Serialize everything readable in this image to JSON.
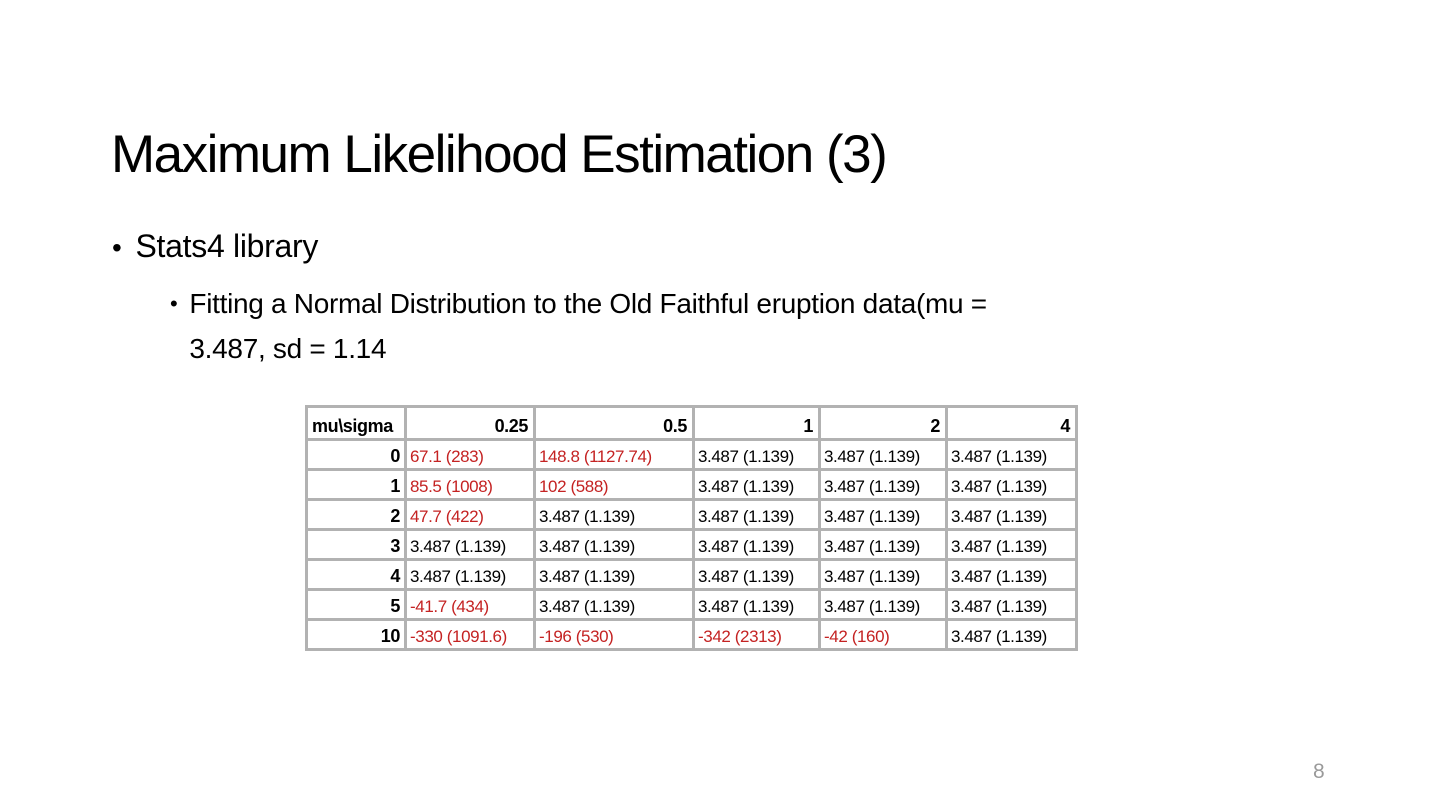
{
  "slide": {
    "title": "Maximum Likelihood Estimation (3)",
    "page_number": "8",
    "bullet_glyph": "•"
  },
  "bullets": {
    "level1": "Stats4 library",
    "level2": {
      "line1": "Fitting a Normal Distribution to the Old Faithful eruption data(mu =",
      "line2": "3.487, sd = 1.14"
    }
  },
  "table": {
    "corner_label": "mu\\sigma",
    "col_headers": [
      "0.25",
      "0.5",
      "1",
      "2",
      "4"
    ],
    "rows": [
      {
        "mu": "0",
        "cells": [
          {
            "text": "67.1 (283)",
            "highlight": true
          },
          {
            "text": "148.8 (1127.74)",
            "highlight": true
          },
          {
            "text": "3.487 (1.139)",
            "highlight": false
          },
          {
            "text": "3.487 (1.139)",
            "highlight": false
          },
          {
            "text": "3.487 (1.139)",
            "highlight": false
          }
        ]
      },
      {
        "mu": "1",
        "cells": [
          {
            "text": "85.5 (1008)",
            "highlight": true
          },
          {
            "text": "102 (588)",
            "highlight": true
          },
          {
            "text": "3.487 (1.139)",
            "highlight": false
          },
          {
            "text": "3.487 (1.139)",
            "highlight": false
          },
          {
            "text": "3.487 (1.139)",
            "highlight": false
          }
        ]
      },
      {
        "mu": "2",
        "cells": [
          {
            "text": "47.7 (422)",
            "highlight": true
          },
          {
            "text": "3.487 (1.139)",
            "highlight": false
          },
          {
            "text": "3.487 (1.139)",
            "highlight": false
          },
          {
            "text": "3.487 (1.139)",
            "highlight": false
          },
          {
            "text": "3.487 (1.139)",
            "highlight": false
          }
        ]
      },
      {
        "mu": "3",
        "cells": [
          {
            "text": "3.487 (1.139)",
            "highlight": false
          },
          {
            "text": "3.487 (1.139)",
            "highlight": false
          },
          {
            "text": "3.487 (1.139)",
            "highlight": false
          },
          {
            "text": "3.487 (1.139)",
            "highlight": false
          },
          {
            "text": "3.487 (1.139)",
            "highlight": false
          }
        ]
      },
      {
        "mu": "4",
        "cells": [
          {
            "text": "3.487 (1.139)",
            "highlight": false
          },
          {
            "text": "3.487 (1.139)",
            "highlight": false
          },
          {
            "text": "3.487 (1.139)",
            "highlight": false
          },
          {
            "text": "3.487 (1.139)",
            "highlight": false
          },
          {
            "text": "3.487 (1.139)",
            "highlight": false
          }
        ]
      },
      {
        "mu": "5",
        "cells": [
          {
            "text": "-41.7 (434)",
            "highlight": true
          },
          {
            "text": "3.487 (1.139)",
            "highlight": false
          },
          {
            "text": "3.487 (1.139)",
            "highlight": false
          },
          {
            "text": "3.487 (1.139)",
            "highlight": false
          },
          {
            "text": "3.487 (1.139)",
            "highlight": false
          }
        ]
      },
      {
        "mu": "10",
        "cells": [
          {
            "text": "-330 (1091.6)",
            "highlight": true
          },
          {
            "text": "-196 (530)",
            "highlight": true
          },
          {
            "text": "-342 (2313)",
            "highlight": true
          },
          {
            "text": "-42 (160)",
            "highlight": true
          },
          {
            "text": "3.487 (1.139)",
            "highlight": false
          }
        ]
      }
    ]
  },
  "colors": {
    "highlight_red": "#c42222",
    "table_border": "#b2b2b2",
    "page_number_gray": "#9a9a9a"
  }
}
